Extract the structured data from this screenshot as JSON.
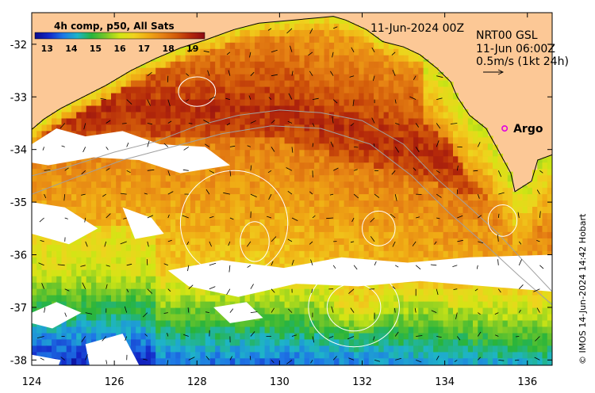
{
  "header": {
    "date": "11-Jun-2024 00Z"
  },
  "colorbar": {
    "title": "4h comp, p50, All Sats",
    "ticks": [
      "13",
      "14",
      "15",
      "16",
      "17",
      "18",
      "19"
    ],
    "min": 12.5,
    "max": 19.5,
    "stops": [
      "#0a0a8c",
      "#1428c8",
      "#1e78e6",
      "#1eb4c8",
      "#28b43c",
      "#78c828",
      "#d2e614",
      "#f0d21e",
      "#f0aa14",
      "#e68214",
      "#d25a0a",
      "#b4280a",
      "#8c0a14"
    ]
  },
  "current_info": {
    "line1": "NRT00 GSL",
    "line2": "11-Jun 06:00Z",
    "line3": "0.5m/s (1kt 24h)"
  },
  "argo": {
    "label": "Argo",
    "lon": 135.45,
    "lat": -33.6,
    "color": "#e000e0"
  },
  "credit": "© IMOS 14-Jun-2024 14:42 Hobart",
  "axes": {
    "lon_min": 124,
    "lon_max": 136.6,
    "lat_min": -38.1,
    "lat_max": -31.4,
    "x_ticks": [
      "124",
      "126",
      "128",
      "130",
      "132",
      "134",
      "136"
    ],
    "y_ticks": [
      "-32",
      "-33",
      "-34",
      "-35",
      "-36",
      "-37",
      "-38"
    ]
  },
  "colors": {
    "land": "#fcc896",
    "cloud": "#ffffff",
    "coast": "#000000",
    "bathy": "#a0a0a0",
    "contour": "#ffffff"
  }
}
